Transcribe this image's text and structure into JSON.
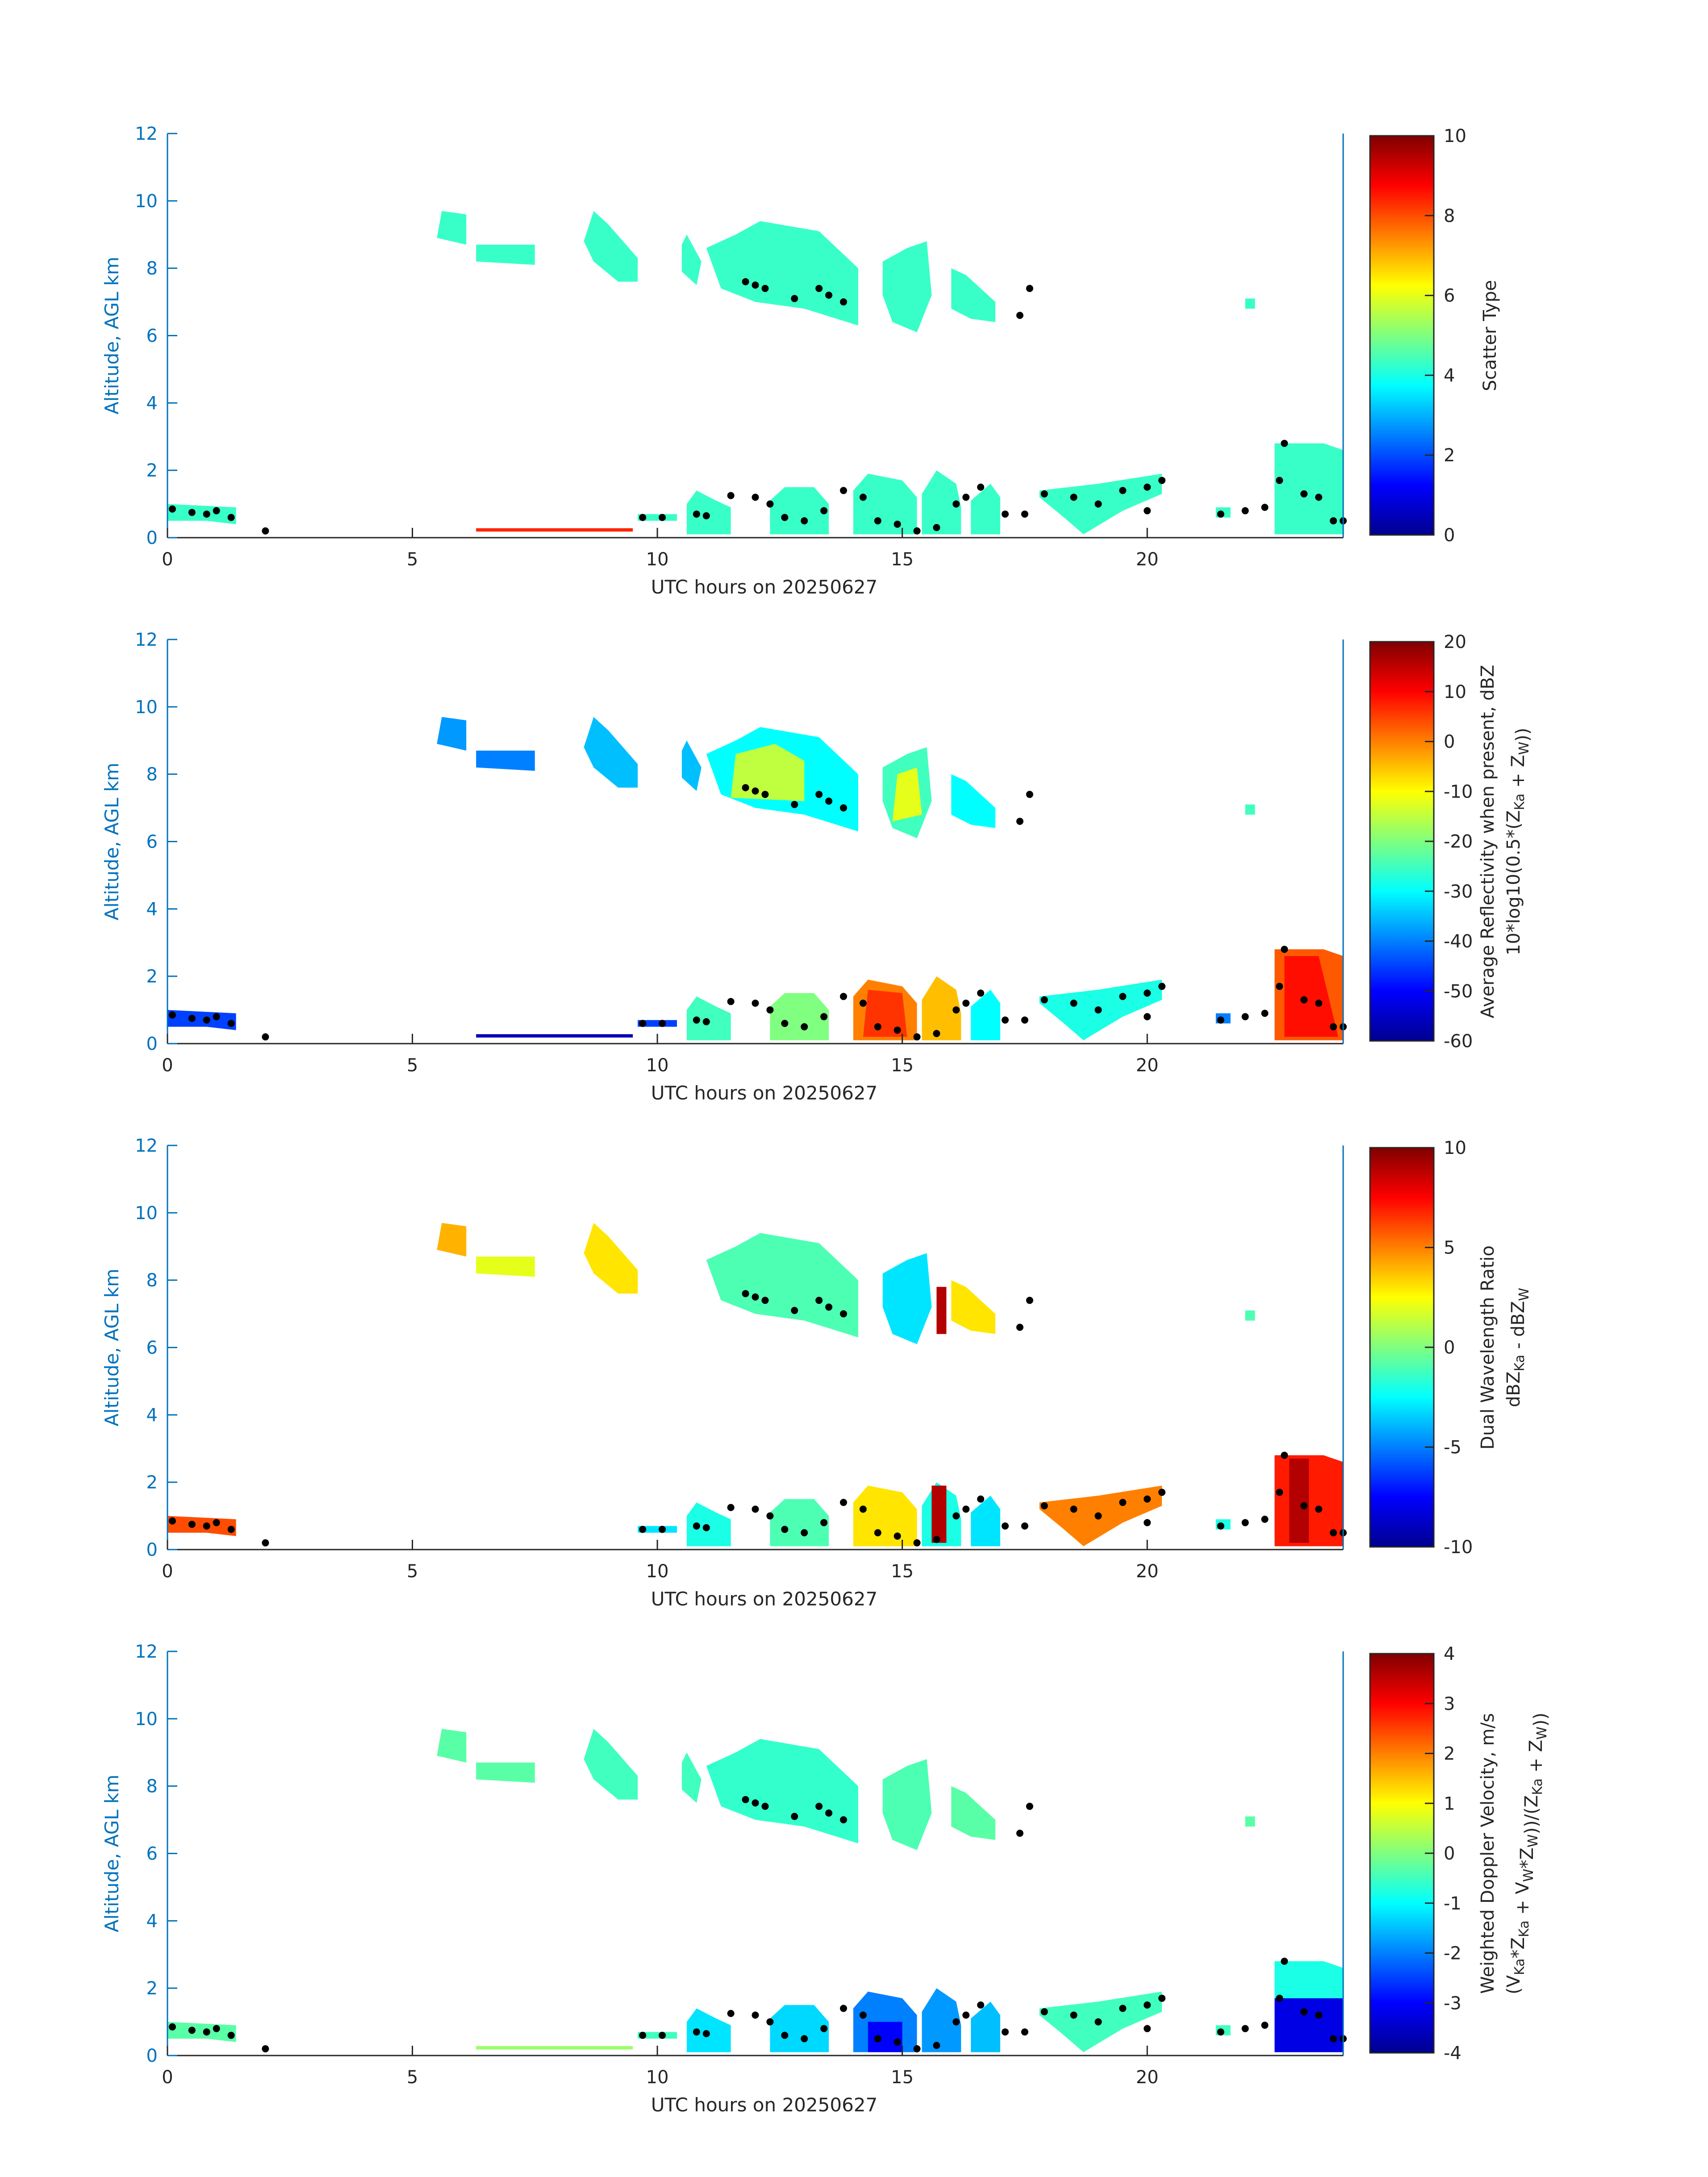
{
  "chart_data": {
    "type": "heatmap",
    "x_label": "UTC hours on 20250627",
    "y_label": "Altitude, AGL km",
    "xlim": [
      0,
      24
    ],
    "ylim": [
      0,
      12
    ],
    "x_ticks": [
      "0",
      "5",
      "10",
      "15",
      "20"
    ],
    "y_ticks": [
      "0",
      "2",
      "4",
      "6",
      "8",
      "10",
      "12"
    ],
    "colormap": "jet",
    "axis_color": "#0072BD",
    "region_polygons": [
      [
        [
          5.5,
          8.9
        ],
        [
          5.6,
          9.7
        ],
        [
          6.1,
          9.6
        ],
        [
          6.1,
          8.7
        ],
        [
          5.8,
          8.8
        ]
      ],
      [
        [
          6.3,
          8.2
        ],
        [
          6.3,
          8.7
        ],
        [
          7.5,
          8.7
        ],
        [
          7.5,
          8.1
        ]
      ],
      [
        [
          8.5,
          8.8
        ],
        [
          8.7,
          9.7
        ],
        [
          9.0,
          9.3
        ],
        [
          9.6,
          8.3
        ],
        [
          9.6,
          7.6
        ],
        [
          9.2,
          7.6
        ],
        [
          8.7,
          8.2
        ]
      ],
      [
        [
          10.5,
          8.7
        ],
        [
          10.6,
          9.0
        ],
        [
          10.9,
          8.2
        ],
        [
          10.8,
          7.5
        ],
        [
          10.5,
          7.9
        ]
      ],
      [
        [
          11.0,
          8.6
        ],
        [
          11.6,
          9.0
        ],
        [
          12.1,
          9.4
        ],
        [
          13.3,
          9.1
        ],
        [
          14.1,
          8.0
        ],
        [
          14.1,
          6.3
        ],
        [
          13.0,
          6.8
        ],
        [
          12.0,
          7.0
        ],
        [
          11.3,
          7.4
        ]
      ],
      [
        [
          14.6,
          8.2
        ],
        [
          15.1,
          8.6
        ],
        [
          15.5,
          8.8
        ],
        [
          15.6,
          7.2
        ],
        [
          15.3,
          6.1
        ],
        [
          14.8,
          6.4
        ],
        [
          14.6,
          7.2
        ]
      ],
      [
        [
          16.0,
          8.0
        ],
        [
          16.3,
          7.8
        ],
        [
          16.9,
          7.0
        ],
        [
          16.9,
          6.4
        ],
        [
          16.4,
          6.5
        ],
        [
          16.0,
          6.8
        ]
      ],
      [
        [
          22.0,
          6.8
        ],
        [
          22.0,
          7.1
        ],
        [
          22.2,
          7.1
        ],
        [
          22.2,
          6.8
        ]
      ],
      [
        [
          0.0,
          0.5
        ],
        [
          0.0,
          1.0
        ],
        [
          1.4,
          0.9
        ],
        [
          1.4,
          0.4
        ],
        [
          0.8,
          0.5
        ]
      ],
      [
        [
          9.6,
          0.5
        ],
        [
          9.6,
          0.7
        ],
        [
          10.4,
          0.7
        ],
        [
          10.4,
          0.5
        ]
      ],
      [
        [
          10.6,
          0.1
        ],
        [
          10.6,
          1.0
        ],
        [
          10.8,
          1.4
        ],
        [
          11.2,
          1.1
        ],
        [
          11.5,
          0.9
        ],
        [
          11.5,
          0.1
        ]
      ],
      [
        [
          12.3,
          0.1
        ],
        [
          12.3,
          1.1
        ],
        [
          12.6,
          1.5
        ],
        [
          13.2,
          1.5
        ],
        [
          13.5,
          1.0
        ],
        [
          13.5,
          0.1
        ]
      ],
      [
        [
          14.0,
          0.1
        ],
        [
          14.0,
          1.4
        ],
        [
          14.3,
          1.9
        ],
        [
          15.0,
          1.7
        ],
        [
          15.3,
          1.2
        ],
        [
          15.3,
          0.1
        ]
      ],
      [
        [
          15.4,
          0.1
        ],
        [
          15.4,
          1.3
        ],
        [
          15.7,
          2.0
        ],
        [
          16.1,
          1.6
        ],
        [
          16.2,
          0.9
        ],
        [
          16.2,
          0.1
        ]
      ],
      [
        [
          16.4,
          0.1
        ],
        [
          16.4,
          1.1
        ],
        [
          16.8,
          1.6
        ],
        [
          17.0,
          1.2
        ],
        [
          17.0,
          0.1
        ]
      ],
      [
        [
          17.8,
          1.2
        ],
        [
          17.8,
          1.4
        ],
        [
          19.0,
          1.6
        ],
        [
          20.3,
          1.9
        ],
        [
          20.3,
          1.3
        ],
        [
          19.5,
          0.8
        ],
        [
          18.7,
          0.1
        ],
        [
          18.3,
          0.6
        ]
      ],
      [
        [
          21.4,
          0.6
        ],
        [
          21.4,
          0.9
        ],
        [
          21.7,
          0.9
        ],
        [
          21.7,
          0.6
        ]
      ],
      [
        [
          22.6,
          0.1
        ],
        [
          22.6,
          2.8
        ],
        [
          23.6,
          2.8
        ],
        [
          24.0,
          2.6
        ],
        [
          24.0,
          0.1
        ]
      ],
      [
        [
          6.3,
          0.18
        ],
        [
          6.3,
          0.28
        ],
        [
          9.5,
          0.28
        ],
        [
          9.5,
          0.18
        ]
      ]
    ],
    "cloud_base_points": [
      [
        0.1,
        0.85
      ],
      [
        0.5,
        0.75
      ],
      [
        0.8,
        0.7
      ],
      [
        1.0,
        0.8
      ],
      [
        1.3,
        0.6
      ],
      [
        2.0,
        0.2
      ],
      [
        9.7,
        0.6
      ],
      [
        10.1,
        0.6
      ],
      [
        10.8,
        0.7
      ],
      [
        11.0,
        0.65
      ],
      [
        11.5,
        1.25
      ],
      [
        12.0,
        1.2
      ],
      [
        12.3,
        1.0
      ],
      [
        12.6,
        0.6
      ],
      [
        13.0,
        0.5
      ],
      [
        13.4,
        0.8
      ],
      [
        13.8,
        1.4
      ],
      [
        14.2,
        1.2
      ],
      [
        14.5,
        0.5
      ],
      [
        14.9,
        0.4
      ],
      [
        15.3,
        0.2
      ],
      [
        15.7,
        0.3
      ],
      [
        16.1,
        1.0
      ],
      [
        16.3,
        1.2
      ],
      [
        16.6,
        1.5
      ],
      [
        17.1,
        0.7
      ],
      [
        17.5,
        0.7
      ],
      [
        17.9,
        1.3
      ],
      [
        18.5,
        1.2
      ],
      [
        19.0,
        1.0
      ],
      [
        19.5,
        1.4
      ],
      [
        20.0,
        1.5
      ],
      [
        20.3,
        1.7
      ],
      [
        20.0,
        0.8
      ],
      [
        21.5,
        0.7
      ],
      [
        22.0,
        0.8
      ],
      [
        22.4,
        0.9
      ],
      [
        22.7,
        1.7
      ],
      [
        22.8,
        2.8
      ],
      [
        23.2,
        1.3
      ],
      [
        23.5,
        1.2
      ],
      [
        23.8,
        0.5
      ],
      [
        24.0,
        0.5
      ],
      [
        11.8,
        7.6
      ],
      [
        12.0,
        7.5
      ],
      [
        12.2,
        7.4
      ],
      [
        12.8,
        7.1
      ],
      [
        13.3,
        7.4
      ],
      [
        13.5,
        7.2
      ],
      [
        13.8,
        7.0
      ],
      [
        17.4,
        6.6
      ],
      [
        17.6,
        7.4
      ]
    ],
    "panels": [
      {
        "name": "scatter-type",
        "clim": [
          0,
          10
        ],
        "cbar_ticks": [
          0,
          2,
          4,
          6,
          8,
          10
        ],
        "cbar_label_lines": [
          [
            {
              "t": "Scatter Type"
            }
          ]
        ],
        "region_values": [
          4.3,
          4.3,
          4.3,
          4.3,
          4.3,
          4.3,
          4.3,
          4.3,
          4.3,
          4.3,
          4.3,
          4.3,
          4.3,
          4.3,
          4.3,
          4.3,
          4.3,
          4.3,
          8.4
        ],
        "cores": []
      },
      {
        "name": "reflectivity",
        "clim": [
          -60,
          20
        ],
        "cbar_ticks": [
          -60,
          -50,
          -40,
          -30,
          -20,
          -10,
          0,
          10,
          20
        ],
        "cbar_label_lines": [
          [
            {
              "t": "Average Reflectivity when present, dBZ"
            }
          ],
          [
            {
              "t": "10*log10(0.5*(Z"
            },
            {
              "sub": "Ka"
            },
            {
              "t": " + Z"
            },
            {
              "sub": "W"
            },
            {
              "t": "))"
            }
          ]
        ],
        "region_values": [
          -38,
          -40,
          -35,
          -35,
          -30,
          -25,
          -30,
          -25,
          -45,
          -45,
          -25,
          -20,
          0,
          -5,
          -30,
          -28,
          -40,
          3,
          -56
        ],
        "cores": [
          {
            "pts": [
              [
                11.5,
                7.3
              ],
              [
                11.6,
                8.6
              ],
              [
                12.4,
                8.9
              ],
              [
                13.0,
                8.4
              ],
              [
                13.0,
                7.2
              ]
            ],
            "v": -15
          },
          {
            "pts": [
              [
                14.8,
                6.6
              ],
              [
                14.9,
                8.0
              ],
              [
                15.3,
                8.2
              ],
              [
                15.4,
                6.8
              ]
            ],
            "v": -12
          },
          {
            "pts": [
              [
                14.2,
                0.2
              ],
              [
                14.3,
                1.6
              ],
              [
                15.0,
                1.5
              ],
              [
                15.1,
                0.2
              ]
            ],
            "v": 6
          },
          {
            "pts": [
              [
                22.8,
                0.2
              ],
              [
                22.8,
                2.6
              ],
              [
                23.5,
                2.6
              ],
              [
                23.9,
                0.2
              ]
            ],
            "v": 9
          }
        ]
      },
      {
        "name": "dual-wavelength-ratio",
        "clim": [
          -10,
          10
        ],
        "cbar_ticks": [
          -10,
          -5,
          0,
          5,
          10
        ],
        "cbar_label_lines": [
          [
            {
              "t": "Dual Wavelength Ratio"
            }
          ],
          [
            {
              "t": "dBZ"
            },
            {
              "sub": "Ka"
            },
            {
              "t": " - dBZ"
            },
            {
              "sub": "W"
            }
          ]
        ],
        "region_values": [
          4,
          2,
          3,
          null,
          -1,
          -3,
          3,
          -1,
          6,
          -3,
          -2,
          -1,
          3,
          -2,
          -3,
          5,
          -2,
          7,
          null
        ],
        "cores": [
          {
            "pts": [
              [
                15.7,
                6.4
              ],
              [
                15.7,
                7.8
              ],
              [
                15.9,
                7.8
              ],
              [
                15.9,
                6.4
              ]
            ],
            "v": 9
          },
          {
            "pts": [
              [
                15.6,
                0.2
              ],
              [
                15.6,
                1.9
              ],
              [
                15.9,
                1.9
              ],
              [
                15.9,
                0.2
              ]
            ],
            "v": 9
          },
          {
            "pts": [
              [
                22.9,
                0.2
              ],
              [
                22.9,
                2.7
              ],
              [
                23.3,
                2.7
              ],
              [
                23.3,
                0.2
              ]
            ],
            "v": 9
          }
        ]
      },
      {
        "name": "doppler-velocity",
        "clim": [
          -4,
          4
        ],
        "cbar_ticks": [
          -4,
          -3,
          -2,
          -1,
          0,
          1,
          2,
          3,
          4
        ],
        "cbar_label_lines": [
          [
            {
              "t": "Weighted Doppler Velocity, m/s"
            }
          ],
          [
            {
              "t": "(V"
            },
            {
              "sub": "Ka"
            },
            {
              "t": "*Z"
            },
            {
              "sub": "Ka"
            },
            {
              "t": " + V"
            },
            {
              "sub": "W"
            },
            {
              "t": "*Z"
            },
            {
              "sub": "W"
            },
            {
              "t": "))/(Z"
            },
            {
              "sub": "Ka"
            },
            {
              "t": " + Z"
            },
            {
              "sub": "W"
            },
            {
              "t": "))"
            }
          ]
        ],
        "region_values": [
          -0.3,
          -0.3,
          -0.5,
          -0.5,
          -0.6,
          -0.4,
          -0.3,
          -0.3,
          -0.3,
          -0.5,
          -1.2,
          -1.3,
          -2.0,
          -1.8,
          -1.5,
          -0.5,
          -0.5,
          -0.8,
          0.2
        ],
        "cores": [
          {
            "pts": [
              [
                22.6,
                0.1
              ],
              [
                22.6,
                1.7
              ],
              [
                24.0,
                1.7
              ],
              [
                24.0,
                0.1
              ]
            ],
            "v": -3.2
          },
          {
            "pts": [
              [
                14.3,
                0.1
              ],
              [
                14.3,
                1.0
              ],
              [
                15.0,
                1.0
              ],
              [
                15.0,
                0.1
              ]
            ],
            "v": -3.0
          }
        ]
      }
    ]
  }
}
